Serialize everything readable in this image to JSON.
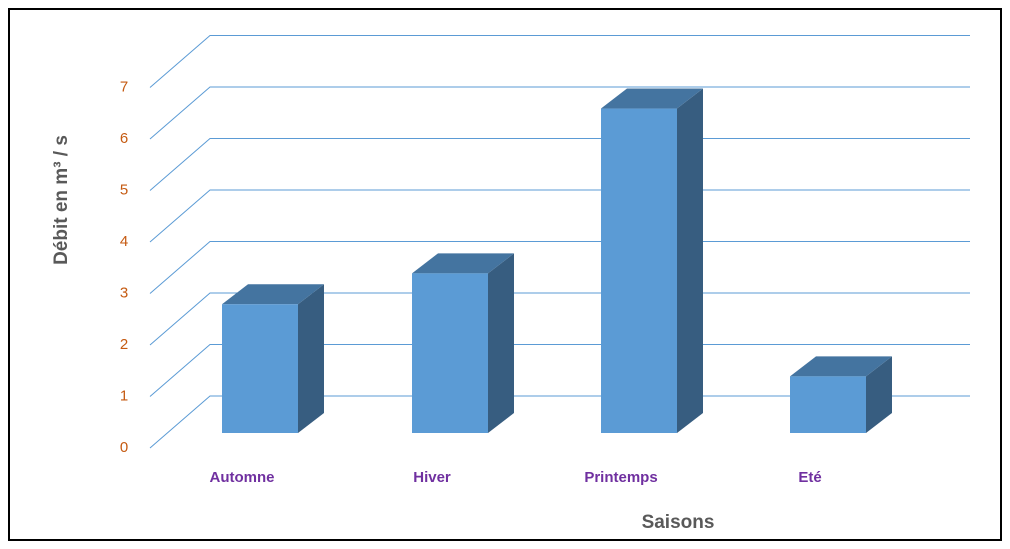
{
  "chart_data": {
    "type": "bar3d",
    "y_label": "Débit en m³ / s",
    "x_label": "Saisons",
    "categories": [
      "Automne",
      "Hiver",
      "Printemps",
      "Eté"
    ],
    "values": [
      2.5,
      3.1,
      6.3,
      1.1
    ],
    "color": "#5b9bd5",
    "ylim": [
      0,
      7
    ],
    "yticks": [
      0,
      1,
      2,
      3,
      4,
      5,
      6,
      7
    ],
    "grid": true
  }
}
